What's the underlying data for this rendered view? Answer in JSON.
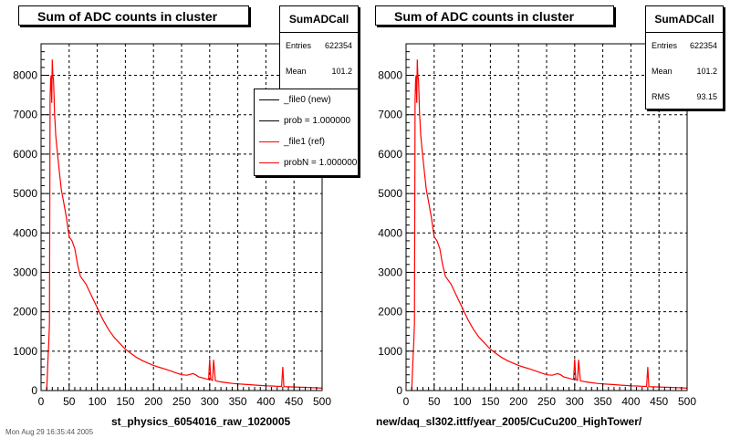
{
  "footer": {
    "timestamp": "Mon Aug 29 16:35:44 2005"
  },
  "panels": [
    {
      "title": "Sum of ADC counts in cluster",
      "stats": {
        "name": "SumADCall",
        "rows": [
          {
            "label": "Entries",
            "value": "622354"
          },
          {
            "label": "Mean",
            "value": "101.2"
          }
        ]
      },
      "legend": [
        {
          "text": "_file0 (new)",
          "color": "#000000"
        },
        {
          "text": "prob = 1.000000",
          "color": "#000000"
        },
        {
          "text": "_file1 (ref)",
          "color": "#ff0000"
        },
        {
          "text": "probN = 1.000000",
          "color": "#ff0000"
        }
      ],
      "xlabel": "st_physics_6054016_raw_1020005"
    },
    {
      "title": "Sum of ADC counts in cluster",
      "stats": {
        "name": "SumADCall",
        "rows": [
          {
            "label": "Entries",
            "value": "622354"
          },
          {
            "label": "Mean",
            "value": "101.2"
          },
          {
            "label": "RMS",
            "value": "93.15"
          }
        ]
      },
      "xlabel": "new/daq_sl302.ittf/year_2005/CuCu200_HighTower/"
    }
  ],
  "chart_data": [
    {
      "type": "line",
      "title": "Sum of ADC counts in cluster",
      "xlabel": "st_physics_6054016_raw_1020005",
      "ylabel": "",
      "xlim": [
        0,
        500
      ],
      "ylim": [
        0,
        8800
      ],
      "xticks": [
        0,
        50,
        100,
        150,
        200,
        250,
        300,
        350,
        400,
        450,
        500
      ],
      "yticks": [
        0,
        1000,
        2000,
        3000,
        4000,
        5000,
        6000,
        7000,
        8000
      ],
      "grid": true,
      "legend_position": "top-right",
      "series": [
        {
          "name": "_file1 (ref)",
          "color": "#ff0000",
          "x": [
            10,
            12,
            14,
            15,
            16,
            17,
            18,
            19,
            20,
            21,
            22,
            23,
            24,
            25,
            26,
            28,
            30,
            33,
            36,
            40,
            45,
            50,
            55,
            60,
            65,
            70,
            80,
            90,
            100,
            110,
            120,
            130,
            140,
            150,
            160,
            170,
            180,
            190,
            200,
            210,
            220,
            230,
            240,
            250,
            260,
            265,
            270,
            275,
            280,
            290,
            298,
            300,
            302,
            305,
            307,
            310,
            312,
            320,
            330,
            340,
            350,
            360,
            370,
            380,
            390,
            400,
            410,
            420,
            428,
            430,
            432,
            440,
            450,
            460,
            470,
            480,
            490,
            500
          ],
          "values": [
            0,
            700,
            1300,
            1700,
            7400,
            7900,
            8000,
            7300,
            8400,
            8000,
            7900,
            7500,
            7000,
            6800,
            6500,
            6200,
            5900,
            5500,
            5100,
            4800,
            4400,
            3900,
            3800,
            3600,
            3200,
            2900,
            2700,
            2400,
            2100,
            1800,
            1550,
            1350,
            1200,
            1050,
            940,
            840,
            760,
            700,
            640,
            590,
            550,
            500,
            450,
            400,
            390,
            410,
            430,
            400,
            350,
            310,
            280,
            800,
            280,
            260,
            780,
            250,
            240,
            220,
            200,
            180,
            170,
            160,
            150,
            140,
            130,
            120,
            115,
            110,
            105,
            600,
            100,
            95,
            90,
            85,
            80,
            75,
            70,
            60
          ]
        }
      ]
    },
    {
      "type": "line",
      "title": "Sum of ADC counts in cluster",
      "xlabel": "new/daq_sl302.ittf/year_2005/CuCu200_HighTower/",
      "ylabel": "",
      "xlim": [
        0,
        500
      ],
      "ylim": [
        0,
        8800
      ],
      "xticks": [
        0,
        50,
        100,
        150,
        200,
        250,
        300,
        350,
        400,
        450,
        500
      ],
      "yticks": [
        0,
        1000,
        2000,
        3000,
        4000,
        5000,
        6000,
        7000,
        8000
      ],
      "grid": true,
      "series": [
        {
          "color": "#ff0000",
          "x": [
            10,
            12,
            14,
            15,
            16,
            17,
            18,
            19,
            20,
            21,
            22,
            23,
            24,
            25,
            26,
            28,
            30,
            33,
            36,
            40,
            45,
            50,
            55,
            60,
            65,
            70,
            80,
            90,
            100,
            110,
            120,
            130,
            140,
            150,
            160,
            170,
            180,
            190,
            200,
            210,
            220,
            230,
            240,
            250,
            260,
            265,
            270,
            275,
            280,
            290,
            298,
            300,
            302,
            305,
            307,
            310,
            312,
            320,
            330,
            340,
            350,
            360,
            370,
            380,
            390,
            400,
            410,
            420,
            428,
            430,
            432,
            440,
            450,
            460,
            470,
            480,
            490,
            500
          ],
          "values": [
            0,
            700,
            1300,
            1700,
            7400,
            7900,
            8000,
            7300,
            8400,
            8000,
            7900,
            7500,
            7000,
            6800,
            6500,
            6200,
            5900,
            5500,
            5100,
            4800,
            4400,
            3900,
            3800,
            3600,
            3200,
            2900,
            2700,
            2400,
            2100,
            1800,
            1550,
            1350,
            1200,
            1050,
            940,
            840,
            760,
            700,
            640,
            590,
            550,
            500,
            450,
            400,
            390,
            410,
            430,
            400,
            350,
            310,
            280,
            800,
            280,
            260,
            780,
            250,
            240,
            220,
            200,
            180,
            170,
            160,
            150,
            140,
            130,
            120,
            115,
            110,
            105,
            600,
            100,
            95,
            90,
            85,
            80,
            75,
            70,
            60
          ]
        }
      ]
    }
  ]
}
